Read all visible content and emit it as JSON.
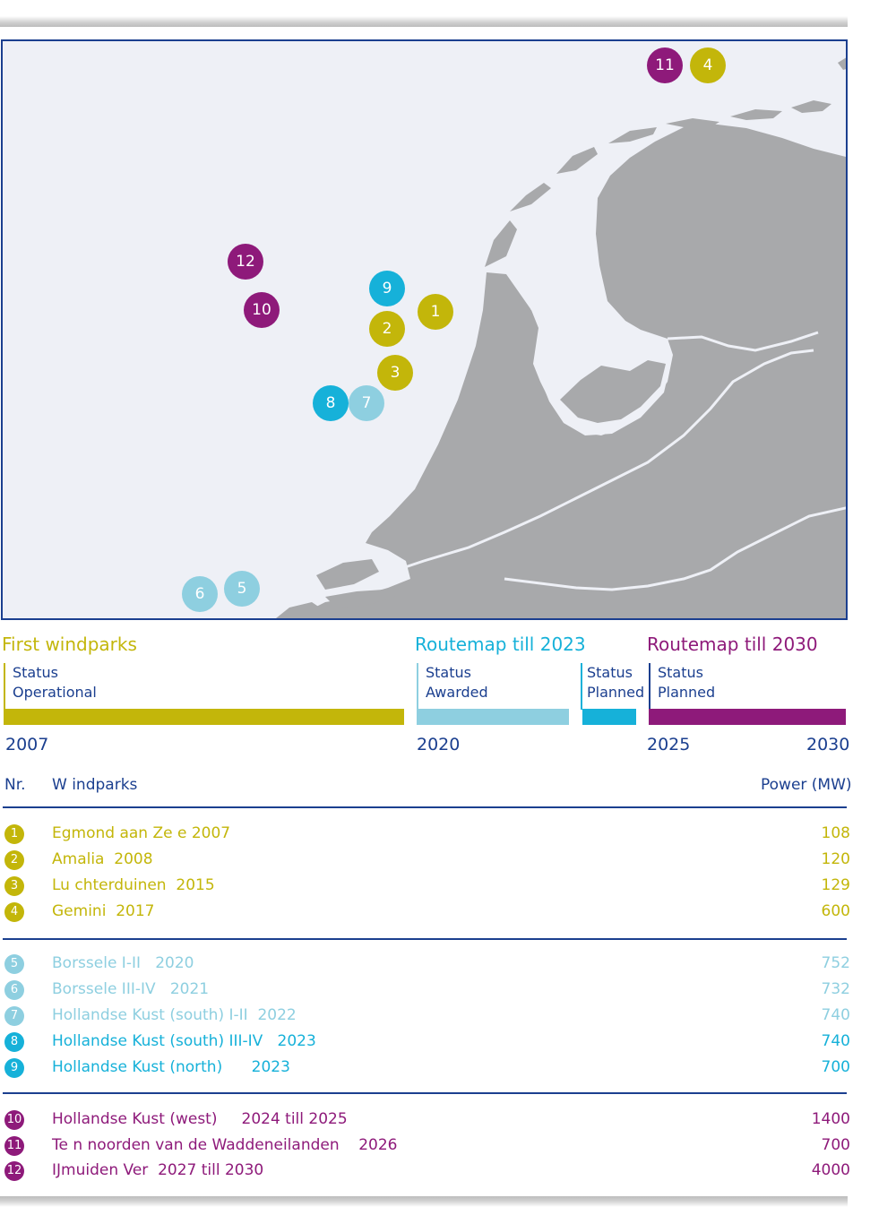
{
  "colors": {
    "olive": "#c3b60a",
    "light_blue": "#8ecfe0",
    "cyan": "#16b1d9",
    "purple": "#8e1a7a",
    "navy": "#1b3f8f",
    "land": "#a8a9ab",
    "sea": "#eef0f6"
  },
  "map": {
    "markers": [
      {
        "label": "11",
        "color": "#8e1a7a"
      },
      {
        "label": "4",
        "color": "#c3b60a"
      },
      {
        "label": "12",
        "color": "#8e1a7a"
      },
      {
        "label": "9",
        "color": "#16b1d9"
      },
      {
        "label": "1",
        "color": "#c3b60a"
      },
      {
        "label": "10",
        "color": "#8e1a7a"
      },
      {
        "label": "2",
        "color": "#c3b60a"
      },
      {
        "label": "3",
        "color": "#c3b60a"
      },
      {
        "label": "8",
        "color": "#16b1d9"
      },
      {
        "label": "7",
        "color": "#8ecfe0"
      },
      {
        "label": "6",
        "color": "#8ecfe0"
      },
      {
        "label": "5",
        "color": "#8ecfe0"
      }
    ]
  },
  "timeline": {
    "phases": [
      {
        "title": "First windparks",
        "status_label": "Status",
        "status_value": "Operational"
      },
      {
        "title": "Routemap till 2023",
        "status_label": "Status",
        "status_value": "Awarded"
      },
      {
        "title": "",
        "status_label": "Status",
        "status_value": "Planned"
      },
      {
        "title": "Routemap till 2030",
        "status_label": "Status",
        "status_value": "Planned"
      }
    ],
    "years": [
      "2007",
      "2020",
      "2025",
      "2030"
    ]
  },
  "table": {
    "col_nr": "Nr.",
    "col_name": "W indparks",
    "col_power": "Power (MW)",
    "rows": [
      {
        "nr": "1",
        "name": "Egmond aan Ze e 2007",
        "power": "108",
        "color": "#c3b60a"
      },
      {
        "nr": "2",
        "name": "Amalia  2008",
        "power": "120",
        "color": "#c3b60a"
      },
      {
        "nr": "3",
        "name": "Lu chterduinen  2015",
        "power": "129",
        "color": "#c3b60a"
      },
      {
        "nr": "4",
        "name": "Gemini  2017",
        "power": "600",
        "color": "#c3b60a"
      },
      {
        "nr": "5",
        "name": "Borssele I-II   2020",
        "power": "752",
        "color": "#8ecfe0"
      },
      {
        "nr": "6",
        "name": "Borssele III-IV   2021",
        "power": "732",
        "color": "#8ecfe0"
      },
      {
        "nr": "7",
        "name": "Hollandse Kust (south) I-II  2022",
        "power": "740",
        "color": "#8ecfe0"
      },
      {
        "nr": "8",
        "name": "Hollandse Kust (south) III-IV   2023",
        "power": "740",
        "color": "#16b1d9"
      },
      {
        "nr": "9",
        "name": "Hollandse Kust (north)      2023",
        "power": "700",
        "color": "#16b1d9"
      },
      {
        "nr": "10",
        "name": "Hollandse Kust (west)     2024 till 2025",
        "power": "1400",
        "color": "#8e1a7a"
      },
      {
        "nr": "11",
        "name": "Te n noorden van de Waddeneilanden    2026",
        "power": "700",
        "color": "#8e1a7a"
      },
      {
        "nr": "12",
        "name": "IJmuiden Ver  2027 till 2030",
        "power": "4000",
        "color": "#8e1a7a"
      }
    ]
  }
}
